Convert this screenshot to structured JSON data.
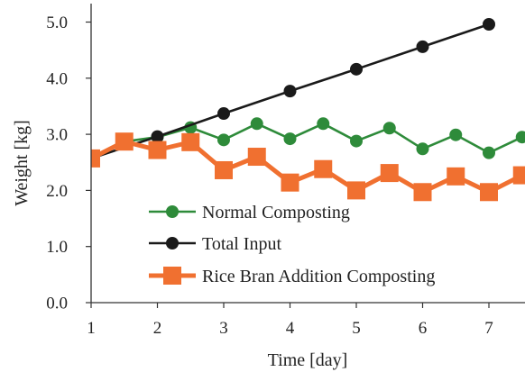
{
  "chart_data": {
    "type": "line",
    "title": "",
    "xlabel": "Time [day]",
    "ylabel": "Weight [kg]",
    "xlim": [
      1,
      7.5
    ],
    "ylim": [
      0,
      5
    ],
    "x_ticks": [
      "1",
      "2",
      "3",
      "4",
      "5",
      "6",
      "7"
    ],
    "y_ticks": [
      "0.0",
      "1.0",
      "2.0",
      "3.0",
      "4.0",
      "5.0"
    ],
    "grid": false,
    "legend_position": "bottom-center",
    "series": [
      {
        "name": "Normal Composting",
        "color": "#2e8b3a",
        "marker": "circle",
        "x": [
          1,
          1.5,
          2,
          2.5,
          3,
          3.5,
          4,
          4.5,
          5,
          5.5,
          6,
          6.5,
          7,
          7.5
        ],
        "y": [
          2.57,
          2.87,
          2.95,
          3.12,
          2.9,
          3.19,
          2.92,
          3.19,
          2.88,
          3.11,
          2.74,
          2.99,
          2.67,
          2.95
        ]
      },
      {
        "name": "Total Input",
        "color": "#1a1a1a",
        "marker": "circle",
        "x": [
          1,
          2,
          3,
          4,
          5,
          6,
          7
        ],
        "y": [
          2.57,
          2.96,
          3.37,
          3.77,
          4.16,
          4.56,
          4.96
        ]
      },
      {
        "name": "Rice Bran Addition Composting",
        "color": "#f07030",
        "marker": "square",
        "x": [
          1,
          1.5,
          2,
          2.5,
          3,
          3.5,
          4,
          4.5,
          5,
          5.5,
          6,
          6.5,
          7,
          7.5
        ],
        "y": [
          2.57,
          2.87,
          2.72,
          2.86,
          2.36,
          2.6,
          2.14,
          2.38,
          2.0,
          2.31,
          1.97,
          2.25,
          1.97,
          2.27
        ]
      }
    ]
  }
}
